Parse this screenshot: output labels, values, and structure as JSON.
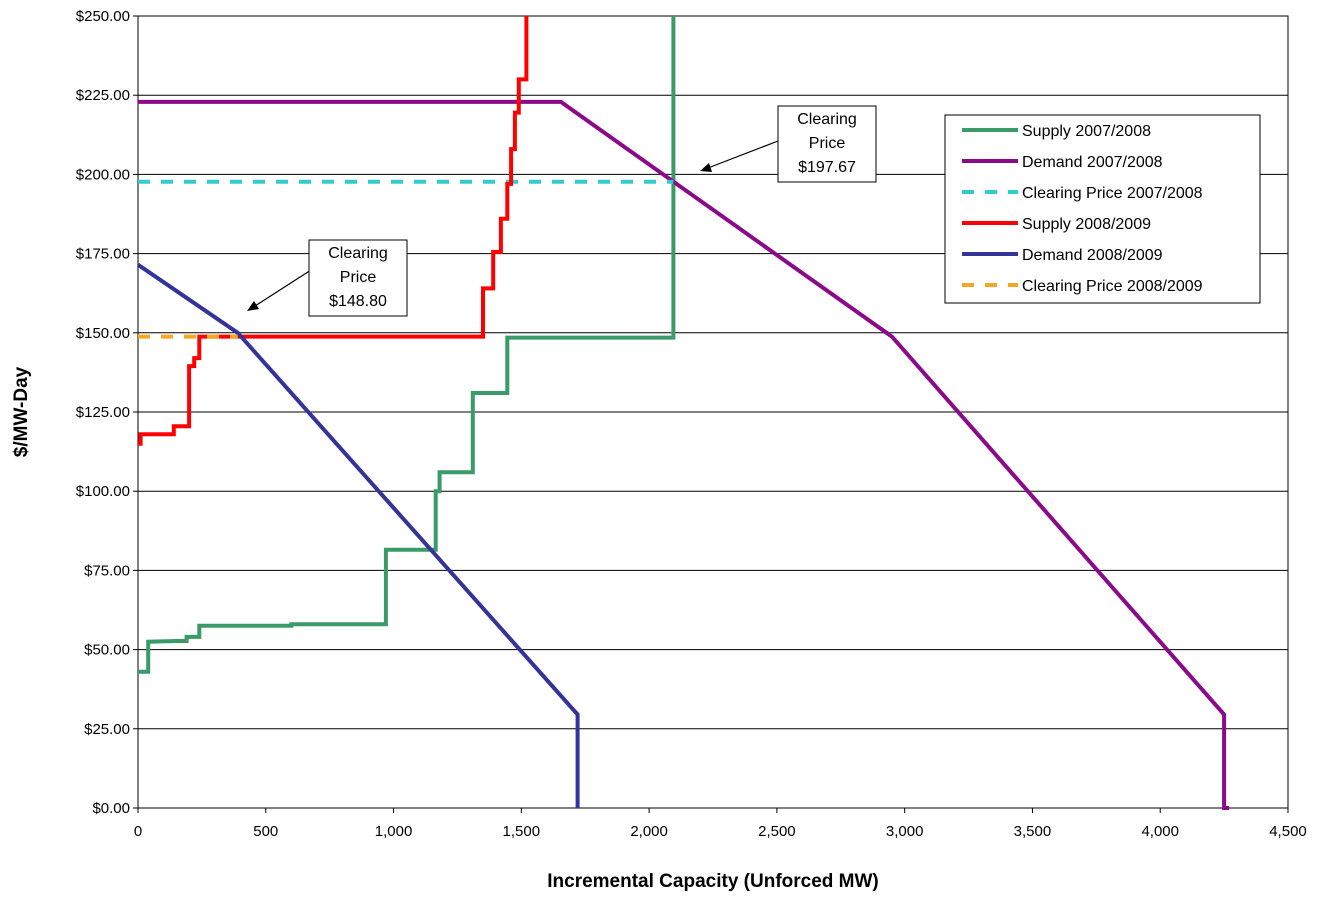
{
  "chart_data": {
    "type": "line",
    "title": "",
    "xlabel": "Incremental Capacity (Unforced MW)",
    "ylabel": "$/MW-Day",
    "xlim": [
      0,
      4500
    ],
    "ylim": [
      0,
      250
    ],
    "x_ticks": [
      0,
      500,
      1000,
      1500,
      2000,
      2500,
      3000,
      3500,
      4000,
      4500
    ],
    "x_tick_labels": [
      "0",
      "500",
      "1,000",
      "1,500",
      "2,000",
      "2,500",
      "3,000",
      "3,500",
      "4,000",
      "4,500"
    ],
    "y_ticks": [
      0,
      25,
      50,
      75,
      100,
      125,
      150,
      175,
      200,
      225,
      250
    ],
    "y_tick_labels": [
      "$0.00",
      "$25.00",
      "$50.00",
      "$75.00",
      "$100.00",
      "$125.00",
      "$150.00",
      "$175.00",
      "$200.00",
      "$225.00",
      "$250.00"
    ],
    "grid": "horizontal",
    "legend_position": "top-right",
    "series": [
      {
        "name": "Supply 2007/2008",
        "color": "#3a9a68",
        "style": "solid",
        "points": [
          [
            0,
            43
          ],
          [
            40,
            43
          ],
          [
            40,
            52.5
          ],
          [
            150,
            52.7
          ],
          [
            190,
            52.7
          ],
          [
            190,
            54
          ],
          [
            240,
            54
          ],
          [
            240,
            57.5
          ],
          [
            600,
            57.5
          ],
          [
            600,
            58
          ],
          [
            970,
            58
          ],
          [
            970,
            81.5
          ],
          [
            1165,
            81.5
          ],
          [
            1165,
            100
          ],
          [
            1180,
            100
          ],
          [
            1180,
            106
          ],
          [
            1310,
            106
          ],
          [
            1310,
            131
          ],
          [
            1445,
            131
          ],
          [
            1445,
            148.5
          ],
          [
            2095,
            148.5
          ],
          [
            2095,
            250
          ]
        ]
      },
      {
        "name": "Demand 2007/2008",
        "color": "#8b0a8b",
        "style": "solid",
        "points": [
          [
            0,
            222.9
          ],
          [
            1655,
            222.9
          ],
          [
            2950,
            148.8
          ],
          [
            4250,
            29.5
          ],
          [
            4250,
            0
          ],
          [
            4270,
            0
          ]
        ]
      },
      {
        "name": "Clearing Price 2007/2008",
        "color": "#33cccc",
        "style": "dashed",
        "points": [
          [
            0,
            197.67
          ],
          [
            2095,
            197.67
          ]
        ]
      },
      {
        "name": "Supply 2008/2009",
        "color": "#ff0000",
        "style": "solid",
        "points": [
          [
            0,
            115
          ],
          [
            10,
            115
          ],
          [
            10,
            118
          ],
          [
            140,
            118
          ],
          [
            140,
            120.5
          ],
          [
            200,
            120.5
          ],
          [
            200,
            139.5
          ],
          [
            220,
            139.5
          ],
          [
            220,
            142
          ],
          [
            240,
            142
          ],
          [
            240,
            148.8
          ],
          [
            1350,
            148.8
          ],
          [
            1350,
            164
          ],
          [
            1390,
            164
          ],
          [
            1390,
            175.5
          ],
          [
            1420,
            175.5
          ],
          [
            1420,
            186
          ],
          [
            1445,
            186
          ],
          [
            1445,
            197
          ],
          [
            1460,
            197
          ],
          [
            1460,
            208
          ],
          [
            1475,
            208
          ],
          [
            1475,
            219.5
          ],
          [
            1490,
            219.5
          ],
          [
            1490,
            230
          ],
          [
            1520,
            230
          ],
          [
            1520,
            250
          ]
        ]
      },
      {
        "name": "Demand 2008/2009",
        "color": "#333399",
        "style": "solid",
        "points": [
          [
            0,
            171.5
          ],
          [
            390,
            150
          ],
          [
            1720,
            29.5
          ],
          [
            1720,
            0
          ]
        ]
      },
      {
        "name": "Clearing Price 2008/2009",
        "color": "#f5a623",
        "style": "dashed",
        "points": [
          [
            0,
            148.8
          ],
          [
            390,
            148.8
          ]
        ]
      }
    ],
    "annotations": [
      {
        "label": "Clearing",
        "line2": "Price",
        "value": "$197.67",
        "points_to": [
          2105,
          199
        ]
      },
      {
        "label": "Clearing",
        "line2": "Price",
        "value": "$148.80",
        "points_to": [
          420,
          155
        ]
      }
    ]
  }
}
